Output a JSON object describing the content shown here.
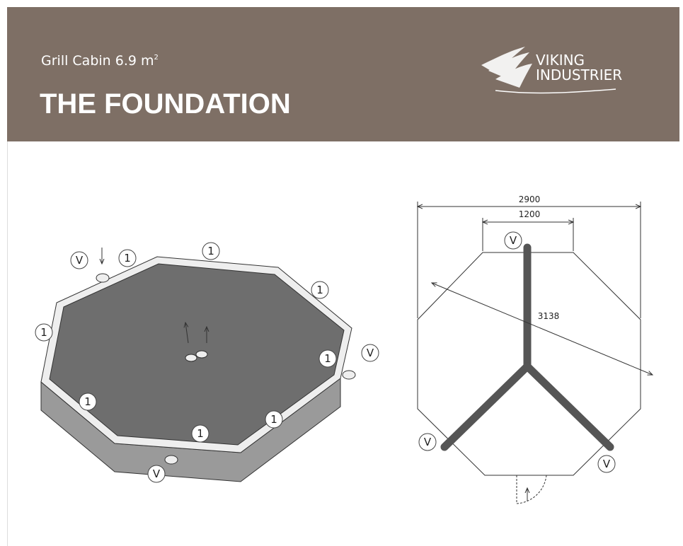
{
  "header": {
    "subtitle": "Grill Cabin 6.9 m",
    "subtitle_sup": "2",
    "title": "THE FOUNDATION",
    "logo": [
      "VIKING",
      "INDUSTRIER"
    ]
  },
  "iso_view": {
    "labels": [
      "V",
      "1",
      "1",
      "1",
      "1",
      "1",
      "V",
      "1",
      "1",
      "1",
      "V"
    ]
  },
  "plan_view": {
    "dimensions": [
      "2900",
      "1200",
      "3138"
    ],
    "labels": [
      "V",
      "V",
      "V"
    ]
  }
}
